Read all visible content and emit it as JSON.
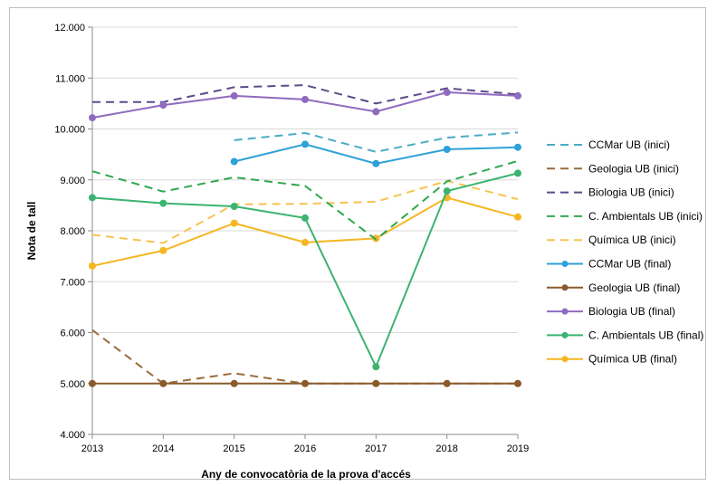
{
  "chart_data": {
    "type": "line",
    "xlabel": "Any de convocatòria de la prova d'accés",
    "ylabel": "Nota de tall",
    "x": [
      2013,
      2014,
      2015,
      2016,
      2017,
      2018,
      2019
    ],
    "ylim": [
      4.0,
      12.0
    ],
    "yticks": [
      4.0,
      5.0,
      6.0,
      7.0,
      8.0,
      9.0,
      10.0,
      11.0,
      12.0
    ],
    "ytick_labels": [
      "4.000",
      "5.000",
      "6.000",
      "7.000",
      "8.000",
      "9.000",
      "10.000",
      "11.000",
      "12.000"
    ],
    "grid": "horizontal",
    "legend_position": "right",
    "series": [
      {
        "name": "CCMar UB (inici)",
        "color": "#4bacc6",
        "style": "dashed",
        "markers": false,
        "values": [
          null,
          null,
          9.78,
          9.92,
          9.55,
          9.83,
          9.93
        ]
      },
      {
        "name": "Geologia UB (inici)",
        "color": "#9b6b3a",
        "style": "dashed",
        "markers": false,
        "values": [
          6.05,
          5.0,
          5.2,
          5.0,
          5.0,
          5.0,
          5.0
        ]
      },
      {
        "name": "Biologia UB (inici)",
        "color": "#5e4a8b",
        "style": "dashed",
        "markers": false,
        "values": [
          10.53,
          10.53,
          10.82,
          10.86,
          10.5,
          10.8,
          10.68
        ]
      },
      {
        "name": "C. Ambientals UB (inici)",
        "color": "#2fa84f",
        "style": "dashed",
        "markers": false,
        "values": [
          9.17,
          8.77,
          9.05,
          8.88,
          7.83,
          8.97,
          9.37
        ]
      },
      {
        "name": "Química UB (inici)",
        "color": "#f7c34f",
        "style": "dashed",
        "markers": false,
        "values": [
          7.92,
          7.76,
          8.52,
          8.53,
          8.57,
          8.98,
          8.62
        ]
      },
      {
        "name": "CCMar UB (final)",
        "color": "#2ea2d8",
        "style": "solid",
        "markers": true,
        "values": [
          null,
          null,
          9.36,
          9.7,
          9.32,
          9.6,
          9.64
        ]
      },
      {
        "name": "Geologia UB (final)",
        "color": "#8b5a2b",
        "style": "solid",
        "markers": true,
        "values": [
          5.0,
          5.0,
          5.0,
          5.0,
          5.0,
          5.0,
          5.0
        ]
      },
      {
        "name": "Biologia UB (final)",
        "color": "#8f6bbf",
        "style": "solid",
        "markers": true,
        "values": [
          10.22,
          10.47,
          10.65,
          10.58,
          10.34,
          10.72,
          10.65
        ]
      },
      {
        "name": "C. Ambientals UB (final)",
        "color": "#3cb371",
        "style": "solid",
        "markers": true,
        "values": [
          8.65,
          8.54,
          8.48,
          8.25,
          5.33,
          8.78,
          9.13
        ]
      },
      {
        "name": "Química UB (final)",
        "color": "#f5b622",
        "style": "solid",
        "markers": true,
        "values": [
          7.31,
          7.61,
          8.15,
          7.77,
          7.85,
          8.65,
          8.27
        ]
      }
    ]
  }
}
